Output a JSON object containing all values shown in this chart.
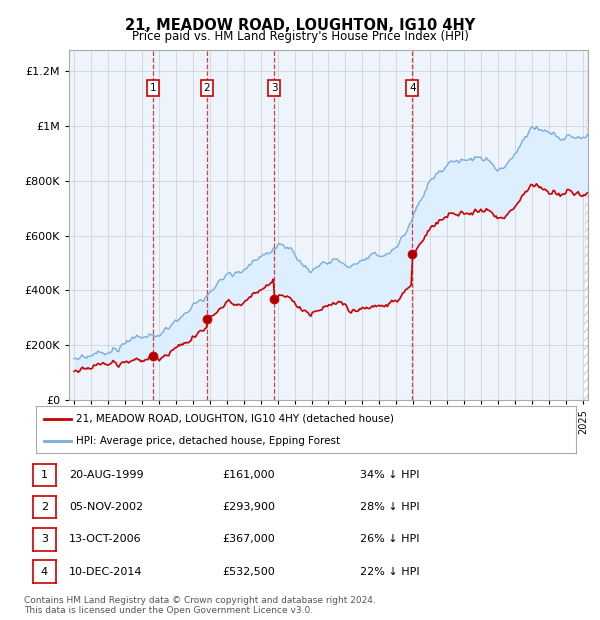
{
  "title": "21, MEADOW ROAD, LOUGHTON, IG10 4HY",
  "subtitle": "Price paid vs. HM Land Registry's House Price Index (HPI)",
  "ylabel_ticks": [
    "£0",
    "£200K",
    "£400K",
    "£600K",
    "£800K",
    "£1M",
    "£1.2M"
  ],
  "ylabel_values": [
    0,
    200000,
    400000,
    600000,
    800000,
    1000000,
    1200000
  ],
  "xlim": [
    1994.7,
    2025.3
  ],
  "ylim": [
    0,
    1280000
  ],
  "legend_line1": "21, MEADOW ROAD, LOUGHTON, IG10 4HY (detached house)",
  "legend_line2": "HPI: Average price, detached house, Epping Forest",
  "sale_labels": [
    "1",
    "2",
    "3",
    "4"
  ],
  "sale_dates_decimal": [
    1999.64,
    2002.84,
    2006.79,
    2014.94
  ],
  "sale_prices": [
    161000,
    293900,
    367000,
    532500
  ],
  "table_rows": [
    [
      "1",
      "20-AUG-1999",
      "£161,000",
      "34% ↓ HPI"
    ],
    [
      "2",
      "05-NOV-2002",
      "£293,900",
      "28% ↓ HPI"
    ],
    [
      "3",
      "13-OCT-2006",
      "£367,000",
      "26% ↓ HPI"
    ],
    [
      "4",
      "10-DEC-2014",
      "£532,500",
      "22% ↓ HPI"
    ]
  ],
  "footer": "Contains HM Land Registry data © Crown copyright and database right 2024.\nThis data is licensed under the Open Government Licence v3.0.",
  "property_line_color": "#cc0000",
  "hpi_line_color": "#7aaddc",
  "shade_color": "#ddeeff",
  "vline_color": "#cc0000",
  "background_color": "#ffffff",
  "plot_bg_color": "#eef4fb"
}
